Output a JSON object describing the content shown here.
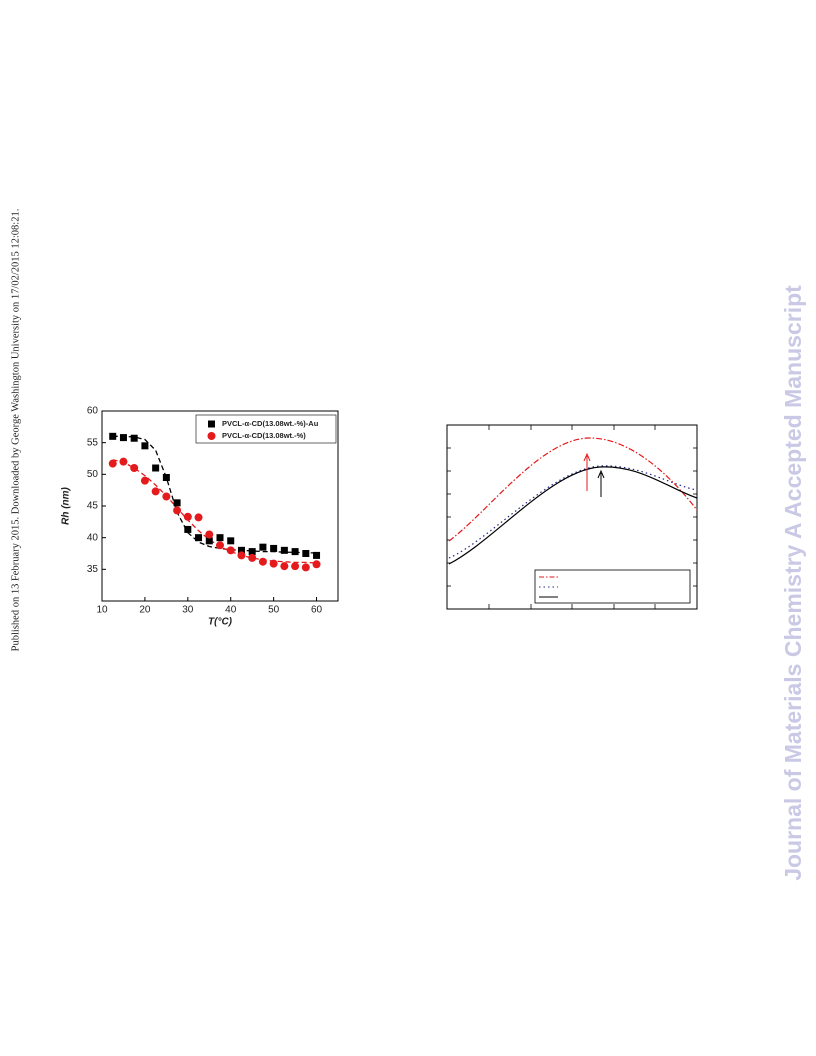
{
  "side_note": "Published on 13 February 2015. Downloaded by George Washington University on 17/02/2015 12:08:21.",
  "watermark": "Journal of Materials Chemistry A Accepted Manuscript",
  "chart_data": [
    {
      "type": "scatter",
      "xlabel": "T(°C)",
      "ylabel": "Rh (nm)",
      "xlim": [
        10,
        65
      ],
      "xticks": [
        10,
        20,
        30,
        40,
        50,
        60
      ],
      "ylim": [
        30,
        60
      ],
      "yticks": [
        35,
        40,
        45,
        50,
        55,
        60
      ],
      "legend": "top-right",
      "x": [
        12.5,
        15,
        17.5,
        20,
        22.5,
        25,
        27.5,
        30,
        32.5,
        35,
        37.5,
        40,
        42.5,
        45,
        47.5,
        50,
        52.5,
        55,
        57.5,
        60
      ],
      "series": [
        {
          "name": "PVCL-α-CD(13.08wt.-%)-Au",
          "color": "#000000",
          "marker": "square",
          "values": [
            56,
            55.8,
            55.7,
            54.5,
            51,
            49.5,
            45.5,
            41.3,
            40,
            39.5,
            40,
            39.5,
            38,
            37.8,
            38.5,
            38.3,
            38,
            37.8,
            37.5,
            37.2
          ]
        },
        {
          "name": "PVCL-α-CD(13.08wt.-%)",
          "color": "#e41a1c",
          "marker": "circle",
          "values": [
            51.7,
            52,
            51,
            49,
            47.3,
            46.5,
            44.3,
            43.3,
            43.2,
            40.5,
            38.8,
            38,
            37.2,
            36.8,
            36.2,
            35.9,
            35.5,
            35.5,
            35.3,
            35.8
          ]
        },
        {
          "color": "#000000",
          "marker": "dashed-line",
          "values": [
            56,
            56,
            55.9,
            55.5,
            53.8,
            49.5,
            44,
            40.8,
            39.3,
            38.6,
            38.3,
            38.1,
            38,
            37.9,
            37.8,
            37.8,
            37.7,
            37.7,
            37.6,
            37.6
          ]
        },
        {
          "color": "#e41a1c",
          "marker": "dashed-line",
          "values": [
            52.3,
            51.9,
            51,
            49.8,
            48.3,
            46.6,
            44.7,
            42.8,
            41.1,
            39.7,
            38.6,
            37.8,
            37.2,
            36.8,
            36.5,
            36.3,
            36.2,
            36.1,
            36.1,
            36
          ]
        }
      ]
    }
  ]
}
